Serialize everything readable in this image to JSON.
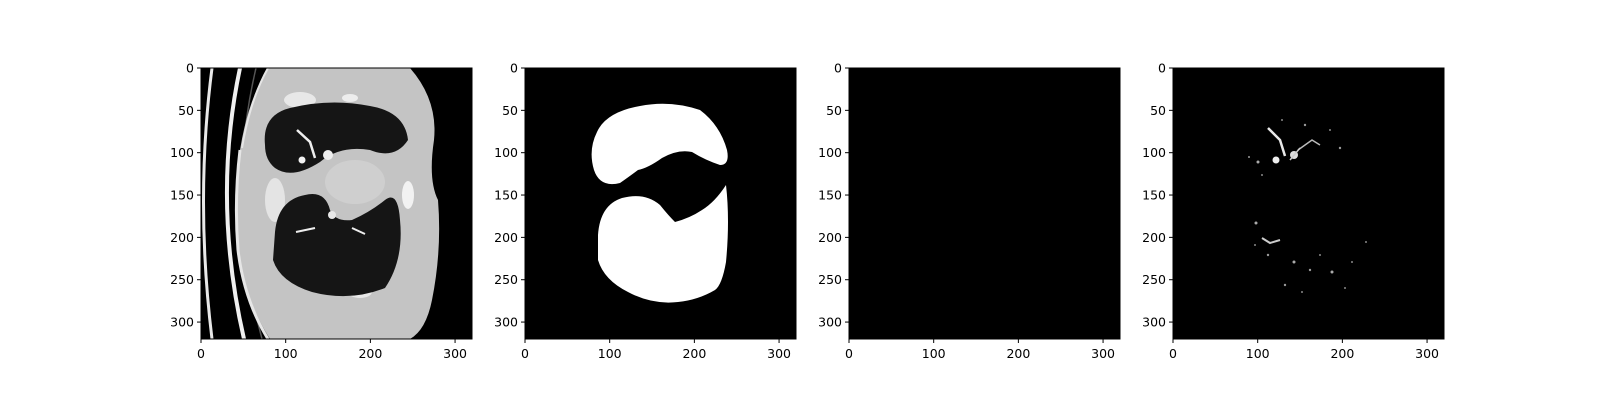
{
  "figure": {
    "panel_count": 4,
    "image_extent": [
      0,
      320
    ],
    "panels": [
      {
        "name": "ct-slice",
        "content": "grayscale CT scan slice",
        "x_ticks": [
          "0",
          "100",
          "200",
          "300"
        ],
        "y_ticks": [
          "0",
          "50",
          "100",
          "150",
          "200",
          "250",
          "300"
        ]
      },
      {
        "name": "lung-mask",
        "content": "binary lung segmentation mask",
        "x_ticks": [
          "0",
          "100",
          "200",
          "300"
        ],
        "y_ticks": [
          "0",
          "50",
          "100",
          "150",
          "200",
          "250",
          "300"
        ]
      },
      {
        "name": "empty-mask",
        "content": "all-black image",
        "x_ticks": [
          "0",
          "100",
          "200",
          "300"
        ],
        "y_ticks": [
          "0",
          "50",
          "100",
          "150",
          "200",
          "250",
          "300"
        ]
      },
      {
        "name": "masked-vessels",
        "content": "masked lung vessels on black",
        "x_ticks": [
          "0",
          "100",
          "200",
          "300"
        ],
        "y_ticks": [
          "0",
          "50",
          "100",
          "150",
          "200",
          "250",
          "300"
        ]
      }
    ]
  },
  "colors": {
    "page_background": "#ffffff",
    "image_background": "#000000",
    "tissue": "#c4c4c4",
    "bright_structures": "#ffffff",
    "axis": "#000000"
  }
}
